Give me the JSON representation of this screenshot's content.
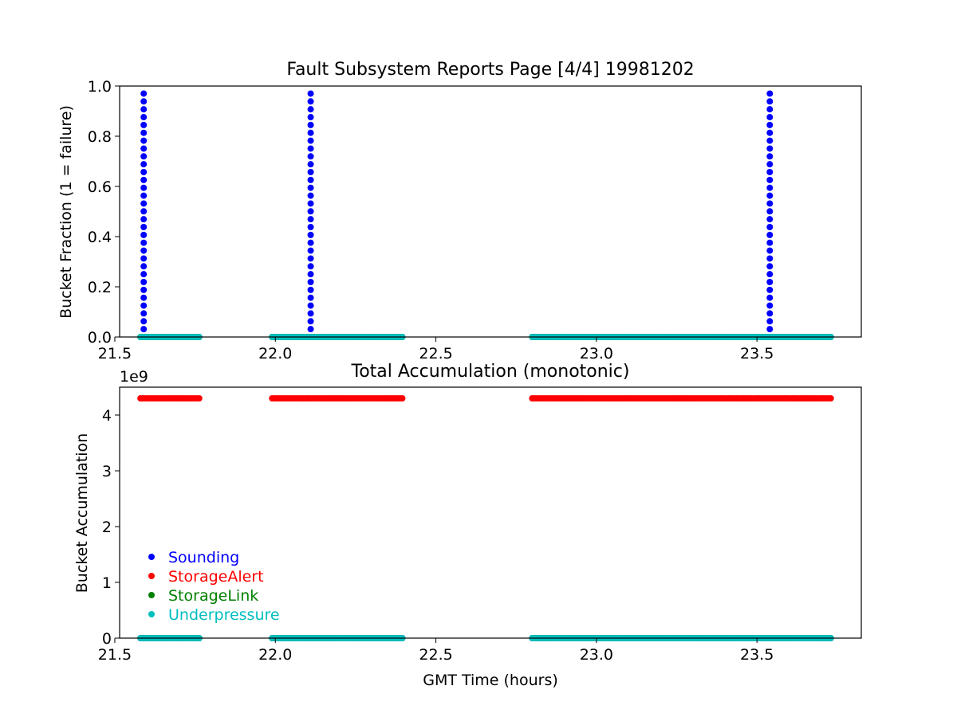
{
  "figure": {
    "colors": {
      "Sounding": "#0000ff",
      "StorageAlert": "#ff0000",
      "StorageLink": "#008000",
      "Underpressure": "#00bfbf"
    }
  },
  "chart_data": [
    {
      "type": "scatter",
      "title": "Fault Subsystem Reports Page [4/4] 19981202",
      "xlabel": "",
      "ylabel": "Bucket Fraction (1 = failure)",
      "xlim": [
        21.515,
        23.825
      ],
      "ylim": [
        0,
        1
      ],
      "xticks": [
        "21.5",
        "22.0",
        "22.5",
        "23.0",
        "23.5"
      ],
      "yticks": [
        "0.0",
        "0.2",
        "0.4",
        "0.6",
        "0.8",
        "1.0"
      ],
      "grid": false,
      "series": [
        {
          "name": "Sounding",
          "color": "#0000ff",
          "segments": [
            {
              "x": [
                21.59
              ],
              "y_from": 0.0,
              "y_to": 0.97
            },
            {
              "x": [
                22.11
              ],
              "y_from": 0.0,
              "y_to": 0.97
            },
            {
              "x": [
                23.54
              ],
              "y_from": 0.0,
              "y_to": 0.97
            }
          ]
        },
        {
          "name": "StorageAlert",
          "color": "#ff0000",
          "runs": [
            {
              "x_from": 21.58,
              "x_to": 21.77,
              "y": 0
            },
            {
              "x_from": 21.99,
              "x_to": 22.4,
              "y": 0
            },
            {
              "x_from": 22.8,
              "x_to": 23.73,
              "y": 0
            }
          ]
        },
        {
          "name": "StorageLink",
          "color": "#008000",
          "runs": [
            {
              "x_from": 21.58,
              "x_to": 21.77,
              "y": 0
            },
            {
              "x_from": 21.99,
              "x_to": 22.4,
              "y": 0
            },
            {
              "x_from": 22.8,
              "x_to": 23.73,
              "y": 0
            }
          ]
        },
        {
          "name": "Underpressure",
          "color": "#00bfbf",
          "runs": [
            {
              "x_from": 21.58,
              "x_to": 21.77,
              "y": 0
            },
            {
              "x_from": 21.99,
              "x_to": 22.4,
              "y": 0
            },
            {
              "x_from": 22.8,
              "x_to": 23.73,
              "y": 0
            }
          ]
        }
      ]
    },
    {
      "type": "scatter",
      "title": "Total Accumulation (monotonic)",
      "xlabel": "GMT Time (hours)",
      "ylabel": "Bucket Accumulation",
      "offset_label": "1e9",
      "xlim": [
        21.515,
        23.825
      ],
      "ylim": [
        0,
        4.5
      ],
      "xticks": [
        "21.5",
        "22.0",
        "22.5",
        "23.0",
        "23.5"
      ],
      "yticks": [
        "0",
        "1",
        "2",
        "3",
        "4"
      ],
      "grid": false,
      "legend": {
        "placement": "lower-left",
        "entries": [
          "Sounding",
          "StorageAlert",
          "StorageLink",
          "Underpressure"
        ]
      },
      "series": [
        {
          "name": "Sounding",
          "color": "#0000ff",
          "runs": [
            {
              "x_from": 21.58,
              "x_to": 21.77,
              "y": 0
            },
            {
              "x_from": 21.99,
              "x_to": 22.4,
              "y": 0
            },
            {
              "x_from": 22.8,
              "x_to": 23.73,
              "y": 0
            }
          ]
        },
        {
          "name": "StorageAlert",
          "color": "#ff0000",
          "runs": [
            {
              "x_from": 21.58,
              "x_to": 21.77,
              "y": 4.3
            },
            {
              "x_from": 21.99,
              "x_to": 22.4,
              "y": 4.3
            },
            {
              "x_from": 22.8,
              "x_to": 23.73,
              "y": 4.3
            }
          ]
        },
        {
          "name": "StorageLink",
          "color": "#008000",
          "runs": [
            {
              "x_from": 21.58,
              "x_to": 21.77,
              "y": 0
            },
            {
              "x_from": 21.99,
              "x_to": 22.4,
              "y": 0
            },
            {
              "x_from": 22.8,
              "x_to": 23.73,
              "y": 0
            }
          ]
        },
        {
          "name": "Underpressure",
          "color": "#00bfbf",
          "runs": [
            {
              "x_from": 21.58,
              "x_to": 21.77,
              "y": 0
            },
            {
              "x_from": 21.99,
              "x_to": 22.4,
              "y": 0
            },
            {
              "x_from": 22.8,
              "x_to": 23.73,
              "y": 0
            }
          ]
        }
      ]
    }
  ]
}
